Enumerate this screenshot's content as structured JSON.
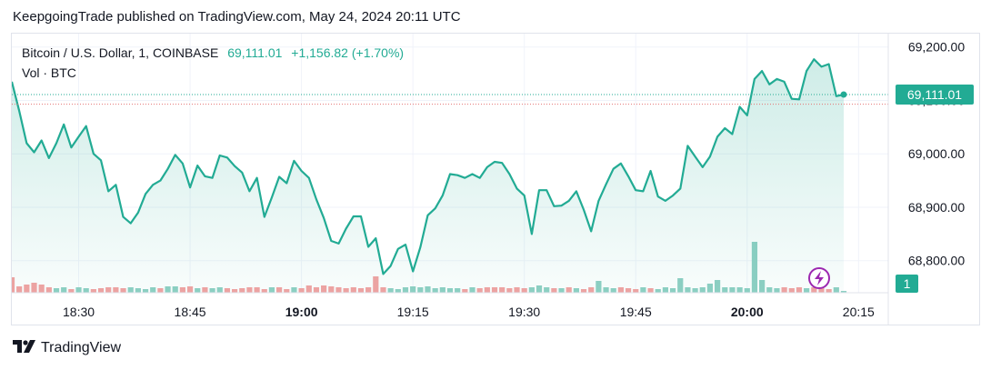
{
  "header": {
    "published": "KeepgoingTrade published on TradingView.com, May 24, 2024 20:11 UTC"
  },
  "legend": {
    "symbol": "Bitcoin / U.S. Dollar, 1, COINBASE",
    "last": "69,111.01",
    "change": "+1,156.82 (+1.70%)",
    "volume_label": "Vol · BTC"
  },
  "price_badge": "69,111.01",
  "volume_badge": "1",
  "footer": {
    "brand": "TradingView"
  },
  "colors": {
    "line": "#22ab94",
    "up_volume": "#8fd0c4",
    "down_volume": "#f3a3a3",
    "price_badge_bg": "#22ab94",
    "alert_icon": "#9c27b0"
  },
  "chart_data": {
    "type": "area",
    "x_tick_labels": [
      "18:30",
      "18:45",
      "19:00",
      "19:15",
      "19:30",
      "19:45",
      "20:00",
      "20:15"
    ],
    "x_ticks_minutes": [
      0,
      15,
      30,
      45,
      60,
      75,
      90,
      105
    ],
    "bold_ticks": [
      "19:00",
      "20:00"
    ],
    "y_tick_labels": [
      "69,200.00",
      "69,100.00",
      "69,000.00",
      "68,900.00",
      "68,800.00"
    ],
    "y_ticks": [
      69200,
      69100,
      69000,
      68900,
      68800
    ],
    "ylim": [
      68740,
      69225
    ],
    "xlim_minutes": [
      -9,
      109
    ],
    "last_price": 69111.01,
    "reference_price": 69093,
    "series": [
      {
        "values": [
          [
            -9,
            69135
          ],
          [
            -8,
            69080
          ],
          [
            -7,
            69020
          ],
          [
            -6,
            69003
          ],
          [
            -5,
            69025
          ],
          [
            -4,
            68992
          ],
          [
            -3,
            69020
          ],
          [
            -2,
            69055
          ],
          [
            -1,
            69012
          ],
          [
            0,
            69032
          ],
          [
            1,
            69052
          ],
          [
            2,
            69000
          ],
          [
            3,
            68988
          ],
          [
            4,
            68930
          ],
          [
            5,
            68942
          ],
          [
            6,
            68882
          ],
          [
            7,
            68870
          ],
          [
            8,
            68890
          ],
          [
            9,
            68925
          ],
          [
            10,
            68942
          ],
          [
            11,
            68950
          ],
          [
            12,
            68972
          ],
          [
            13,
            68998
          ],
          [
            14,
            68982
          ],
          [
            15,
            68937
          ],
          [
            16,
            68978
          ],
          [
            17,
            68958
          ],
          [
            18,
            68955
          ],
          [
            19,
            68997
          ],
          [
            20,
            68993
          ],
          [
            21,
            68977
          ],
          [
            22,
            68965
          ],
          [
            23,
            68930
          ],
          [
            24,
            68955
          ],
          [
            25,
            68882
          ],
          [
            26,
            68918
          ],
          [
            27,
            68957
          ],
          [
            28,
            68945
          ],
          [
            29,
            68987
          ],
          [
            30,
            68968
          ],
          [
            31,
            68955
          ],
          [
            32,
            68915
          ],
          [
            33,
            68880
          ],
          [
            34,
            68837
          ],
          [
            35,
            68832
          ],
          [
            36,
            68860
          ],
          [
            37,
            68883
          ],
          [
            38,
            68883
          ],
          [
            39,
            68826
          ],
          [
            40,
            68842
          ],
          [
            41,
            68775
          ],
          [
            42,
            68790
          ],
          [
            43,
            68822
          ],
          [
            44,
            68830
          ],
          [
            45,
            68780
          ],
          [
            46,
            68825
          ],
          [
            47,
            68885
          ],
          [
            48,
            68898
          ],
          [
            49,
            68922
          ],
          [
            50,
            68962
          ],
          [
            51,
            68960
          ],
          [
            52,
            68955
          ],
          [
            53,
            68962
          ],
          [
            54,
            68955
          ],
          [
            55,
            68975
          ],
          [
            56,
            68985
          ],
          [
            57,
            68983
          ],
          [
            58,
            68962
          ],
          [
            59,
            68935
          ],
          [
            60,
            68922
          ],
          [
            61,
            68850
          ],
          [
            62,
            68932
          ],
          [
            63,
            68932
          ],
          [
            64,
            68902
          ],
          [
            65,
            68903
          ],
          [
            66,
            68912
          ],
          [
            67,
            68930
          ],
          [
            68,
            68895
          ],
          [
            69,
            68855
          ],
          [
            70,
            68912
          ],
          [
            71,
            68943
          ],
          [
            72,
            68972
          ],
          [
            73,
            68982
          ],
          [
            74,
            68958
          ],
          [
            75,
            68932
          ],
          [
            76,
            68930
          ],
          [
            77,
            68968
          ],
          [
            78,
            68920
          ],
          [
            79,
            68912
          ],
          [
            80,
            68922
          ],
          [
            81,
            68935
          ],
          [
            82,
            69015
          ],
          [
            83,
            68995
          ],
          [
            84,
            68975
          ],
          [
            85,
            68995
          ],
          [
            86,
            69032
          ],
          [
            87,
            69048
          ],
          [
            88,
            69037
          ],
          [
            89,
            69088
          ],
          [
            90,
            69072
          ],
          [
            91,
            69140
          ],
          [
            92,
            69155
          ],
          [
            93,
            69130
          ],
          [
            94,
            69140
          ],
          [
            95,
            69135
          ],
          [
            96,
            69103
          ],
          [
            97,
            69102
          ],
          [
            98,
            69155
          ],
          [
            99,
            69177
          ],
          [
            100,
            69163
          ],
          [
            101,
            69168
          ],
          [
            102,
            69108
          ],
          [
            103,
            69111
          ]
        ]
      }
    ],
    "volume": {
      "label": "Vol · BTC",
      "bars": [
        [
          -9,
          8.5,
          "down"
        ],
        [
          -8,
          3.5,
          "down"
        ],
        [
          -7,
          4.5,
          "down"
        ],
        [
          -6,
          5.5,
          "down"
        ],
        [
          -5,
          4.5,
          "down"
        ],
        [
          -4,
          3,
          "down"
        ],
        [
          -3,
          2.5,
          "up"
        ],
        [
          -2,
          3,
          "up"
        ],
        [
          -1,
          2,
          "down"
        ],
        [
          0,
          3,
          "up"
        ],
        [
          1,
          2.5,
          "up"
        ],
        [
          2,
          2,
          "down"
        ],
        [
          3,
          2.5,
          "down"
        ],
        [
          4,
          3,
          "down"
        ],
        [
          5,
          3,
          "down"
        ],
        [
          6,
          2.5,
          "down"
        ],
        [
          7,
          3,
          "up"
        ],
        [
          8,
          2.5,
          "up"
        ],
        [
          9,
          2,
          "up"
        ],
        [
          10,
          3,
          "up"
        ],
        [
          11,
          2.5,
          "down"
        ],
        [
          12,
          3.5,
          "up"
        ],
        [
          13,
          3.5,
          "up"
        ],
        [
          14,
          3,
          "down"
        ],
        [
          15,
          3.5,
          "down"
        ],
        [
          16,
          2.5,
          "up"
        ],
        [
          17,
          3,
          "down"
        ],
        [
          18,
          2.5,
          "up"
        ],
        [
          19,
          3,
          "up"
        ],
        [
          20,
          2.5,
          "down"
        ],
        [
          21,
          2,
          "down"
        ],
        [
          22,
          2.5,
          "down"
        ],
        [
          23,
          3,
          "down"
        ],
        [
          24,
          3,
          "down"
        ],
        [
          25,
          2,
          "down"
        ],
        [
          26,
          3,
          "up"
        ],
        [
          27,
          3,
          "down"
        ],
        [
          28,
          2,
          "down"
        ],
        [
          29,
          3,
          "up"
        ],
        [
          30,
          2.5,
          "down"
        ],
        [
          31,
          4,
          "down"
        ],
        [
          32,
          3,
          "down"
        ],
        [
          33,
          4,
          "down"
        ],
        [
          34,
          3.5,
          "down"
        ],
        [
          35,
          3,
          "down"
        ],
        [
          36,
          2.5,
          "down"
        ],
        [
          37,
          3,
          "down"
        ],
        [
          38,
          2.5,
          "down"
        ],
        [
          39,
          3,
          "down"
        ],
        [
          40,
          9,
          "down"
        ],
        [
          41,
          3,
          "down"
        ],
        [
          42,
          2.5,
          "up"
        ],
        [
          43,
          2,
          "up"
        ],
        [
          44,
          3,
          "up"
        ],
        [
          45,
          3.5,
          "up"
        ],
        [
          46,
          3,
          "up"
        ],
        [
          47,
          3.5,
          "up"
        ],
        [
          48,
          2.5,
          "up"
        ],
        [
          49,
          3,
          "up"
        ],
        [
          50,
          2.5,
          "up"
        ],
        [
          51,
          2.5,
          "up"
        ],
        [
          52,
          2,
          "down"
        ],
        [
          53,
          3,
          "up"
        ],
        [
          54,
          2.5,
          "down"
        ],
        [
          55,
          3,
          "down"
        ],
        [
          56,
          3,
          "down"
        ],
        [
          57,
          3,
          "down"
        ],
        [
          58,
          2.5,
          "down"
        ],
        [
          59,
          3,
          "down"
        ],
        [
          60,
          2.5,
          "down"
        ],
        [
          61,
          3,
          "up"
        ],
        [
          62,
          4,
          "up"
        ],
        [
          63,
          3,
          "up"
        ],
        [
          64,
          2.5,
          "down"
        ],
        [
          65,
          2.5,
          "up"
        ],
        [
          66,
          3,
          "down"
        ],
        [
          67,
          2.5,
          "up"
        ],
        [
          68,
          2,
          "down"
        ],
        [
          69,
          3,
          "down"
        ],
        [
          70,
          6.5,
          "up"
        ],
        [
          71,
          3,
          "up"
        ],
        [
          72,
          2.5,
          "up"
        ],
        [
          73,
          3,
          "down"
        ],
        [
          74,
          2.5,
          "down"
        ],
        [
          75,
          2,
          "down"
        ],
        [
          76,
          3,
          "up"
        ],
        [
          77,
          2.5,
          "down"
        ],
        [
          78,
          2,
          "up"
        ],
        [
          79,
          3,
          "up"
        ],
        [
          80,
          2.5,
          "up"
        ],
        [
          81,
          8,
          "up"
        ],
        [
          82,
          3,
          "up"
        ],
        [
          83,
          2.5,
          "up"
        ],
        [
          84,
          3,
          "up"
        ],
        [
          85,
          5,
          "up"
        ],
        [
          86,
          7,
          "up"
        ],
        [
          87,
          3,
          "up"
        ],
        [
          88,
          3,
          "up"
        ],
        [
          89,
          3,
          "up"
        ],
        [
          90,
          2.5,
          "up"
        ],
        [
          91,
          28,
          "up"
        ],
        [
          92,
          7,
          "up"
        ],
        [
          93,
          3,
          "up"
        ],
        [
          94,
          2.5,
          "up"
        ],
        [
          95,
          3,
          "down"
        ],
        [
          96,
          2.5,
          "down"
        ],
        [
          97,
          3,
          "down"
        ],
        [
          98,
          2.5,
          "up"
        ],
        [
          99,
          3,
          "down"
        ],
        [
          100,
          2.5,
          "down"
        ],
        [
          101,
          2,
          "down"
        ],
        [
          102,
          3,
          "up"
        ],
        [
          103,
          1,
          "up"
        ]
      ]
    },
    "grid": true,
    "legend_position": "top-left"
  }
}
